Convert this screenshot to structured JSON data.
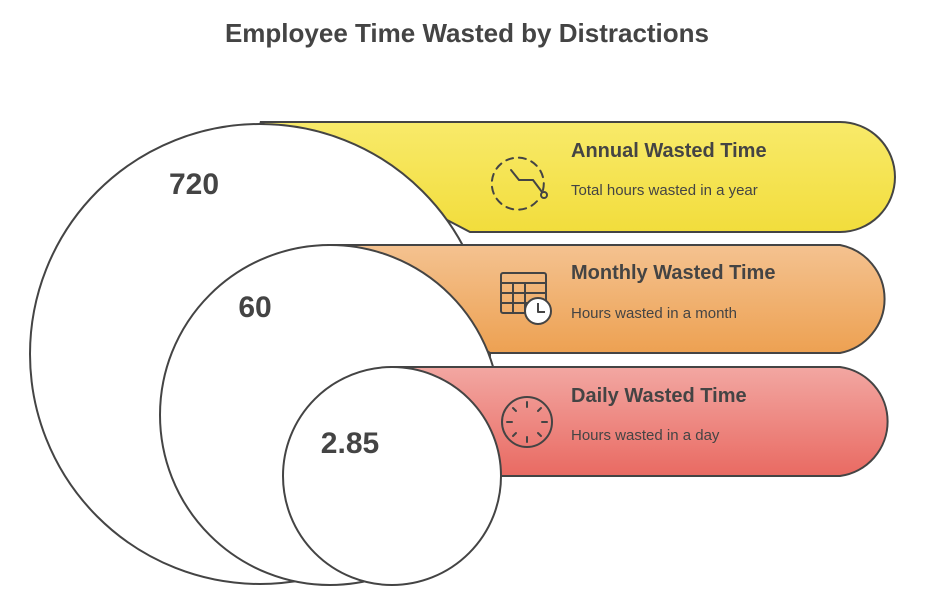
{
  "title": "Employee Time Wasted by Distractions",
  "items": [
    {
      "value": "720",
      "heading": "Annual Wasted Time",
      "description": "Total hours wasted in a year",
      "icon": "clock-cycle-icon",
      "color_top": "#f8ea6a",
      "color_bottom": "#f2dd3c"
    },
    {
      "value": "60",
      "heading": "Monthly Wasted Time",
      "description": "Hours wasted in a month",
      "icon": "calendar-clock-icon",
      "color_top": "#f4c290",
      "color_bottom": "#eda152"
    },
    {
      "value": "2.85",
      "heading": "Daily Wasted Time",
      "description": "Hours wasted in a day",
      "icon": "clock-icon",
      "color_top": "#f2a7a2",
      "color_bottom": "#e96a62"
    }
  ]
}
